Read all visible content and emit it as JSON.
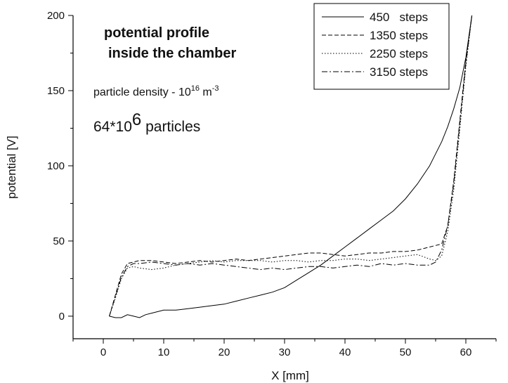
{
  "chart_data": {
    "type": "line",
    "xlabel": "X [mm]",
    "ylabel": "potential [V]",
    "xlim": [
      -5,
      65
    ],
    "ylim": [
      -15,
      200
    ],
    "xticks": [
      0,
      10,
      20,
      30,
      40,
      50,
      60
    ],
    "yticks": [
      0,
      50,
      100,
      150,
      200
    ],
    "legend_position": "top-right",
    "annotations": {
      "title_line1": "potential profile",
      "title_line2": "inside the chamber",
      "density_prefix": "particle density - 10",
      "density_exp": "16",
      "density_unit": " m",
      "density_unit_exp": "-3",
      "particles_prefix": "64*10",
      "particles_exp": "6",
      "particles_suffix": " particles"
    },
    "series": [
      {
        "name": "450   steps",
        "dash": "",
        "x": [
          1,
          2,
          3,
          4,
          5,
          6,
          7,
          8,
          10,
          12,
          14,
          16,
          18,
          20,
          22,
          24,
          26,
          28,
          30,
          32,
          34,
          36,
          38,
          40,
          42,
          44,
          46,
          48,
          50,
          52,
          54,
          55,
          56,
          57,
          58,
          59,
          60,
          61
        ],
        "y": [
          0,
          -1,
          -1,
          1,
          0,
          -1,
          1,
          2,
          4,
          4,
          5,
          6,
          7,
          8,
          10,
          12,
          14,
          16,
          19,
          24,
          29,
          34,
          40,
          46,
          52,
          58,
          64,
          70,
          78,
          88,
          100,
          108,
          116,
          126,
          138,
          152,
          172,
          200
        ]
      },
      {
        "name": "1350 steps",
        "dash": "6,3",
        "x": [
          1,
          2,
          3,
          4,
          5,
          6,
          8,
          10,
          12,
          14,
          16,
          18,
          20,
          22,
          24,
          26,
          28,
          30,
          32,
          34,
          36,
          38,
          40,
          42,
          44,
          46,
          48,
          50,
          52,
          54,
          55,
          56,
          57,
          58,
          59,
          60,
          61
        ],
        "y": [
          0,
          14,
          28,
          35,
          36,
          37,
          37,
          36,
          35,
          36,
          37,
          36,
          37,
          38,
          37,
          38,
          39,
          40,
          41,
          42,
          42,
          41,
          40,
          41,
          42,
          42,
          43,
          43,
          44,
          46,
          47,
          48,
          60,
          90,
          130,
          170,
          200
        ]
      },
      {
        "name": "2250 steps",
        "dash": "1.5,2.5",
        "x": [
          1,
          2,
          3,
          4,
          5,
          6,
          8,
          10,
          12,
          14,
          16,
          18,
          20,
          22,
          24,
          26,
          28,
          30,
          32,
          34,
          36,
          38,
          40,
          42,
          44,
          46,
          48,
          50,
          52,
          54,
          55,
          56,
          57,
          58,
          59,
          60,
          61
        ],
        "y": [
          0,
          12,
          25,
          32,
          33,
          32,
          31,
          32,
          34,
          35,
          36,
          37,
          36,
          37,
          37,
          37,
          36,
          37,
          37,
          36,
          37,
          37,
          38,
          38,
          37,
          38,
          39,
          40,
          41,
          38,
          37,
          40,
          56,
          84,
          124,
          166,
          200
        ]
      },
      {
        "name": "3150 steps",
        "dash": "8,3,2,3",
        "x": [
          1,
          2,
          3,
          4,
          5,
          6,
          8,
          10,
          12,
          14,
          16,
          18,
          20,
          22,
          24,
          26,
          28,
          30,
          32,
          34,
          36,
          38,
          40,
          42,
          44,
          46,
          48,
          50,
          52,
          54,
          55,
          56,
          57,
          58,
          59,
          60,
          61
        ],
        "y": [
          0,
          13,
          26,
          33,
          35,
          35,
          36,
          35,
          34,
          35,
          34,
          35,
          34,
          33,
          32,
          31,
          32,
          31,
          32,
          33,
          33,
          32,
          33,
          34,
          33,
          35,
          34,
          35,
          34,
          34,
          36,
          44,
          60,
          88,
          128,
          168,
          200
        ]
      }
    ]
  }
}
